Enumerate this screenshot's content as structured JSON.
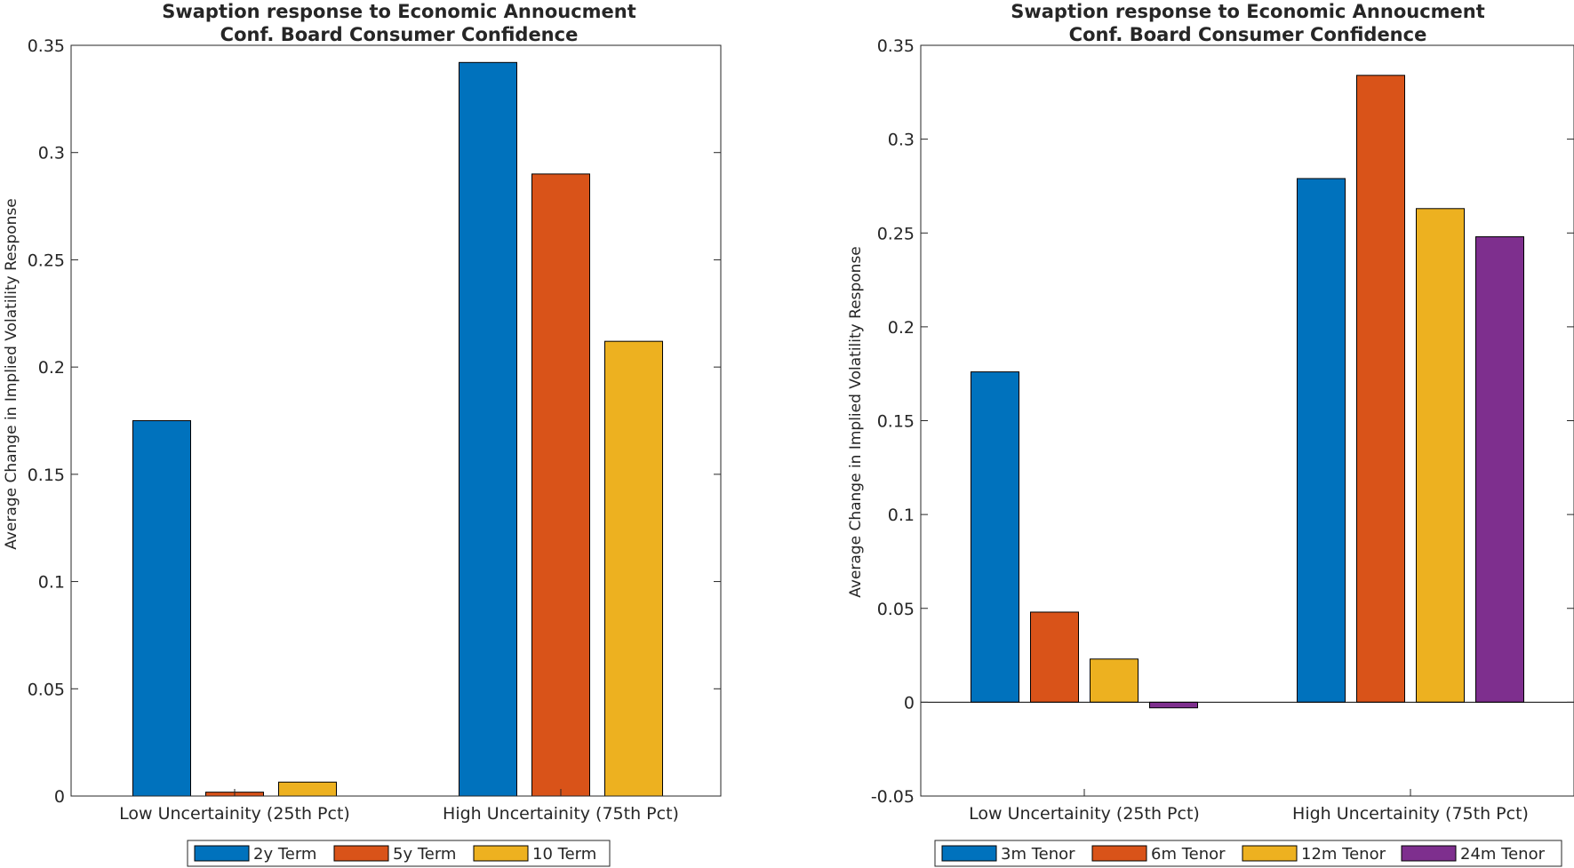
{
  "chart_data": [
    {
      "type": "bar",
      "title_line1": "Swaption response to Economic Annoucment",
      "title_line2": "Conf. Board Consumer Confidence",
      "xlabel": "",
      "ylabel": "Average Change in Implied Volatility Response",
      "categories": [
        "Low Uncertainity (25th Pct)",
        "High Uncertainity (75th Pct)"
      ],
      "ylim": [
        0,
        0.35
      ],
      "yticks": [
        0,
        0.05,
        0.1,
        0.15,
        0.2,
        0.25,
        0.3,
        0.35
      ],
      "ytick_labels": [
        "0",
        "0.05",
        "0.1",
        "0.15",
        "0.2",
        "0.25",
        "0.3",
        "0.35"
      ],
      "legend_position": "bottom-center",
      "grid": false,
      "series": [
        {
          "name": "2y Term",
          "color": "#0072BD",
          "values": [
            0.175,
            0.342
          ]
        },
        {
          "name": "5y Term",
          "color": "#D95319",
          "values": [
            0.0018,
            0.29
          ]
        },
        {
          "name": "10 Term",
          "color": "#EDB120",
          "values": [
            0.0065,
            0.212
          ]
        }
      ]
    },
    {
      "type": "bar",
      "title_line1": "Swaption response to Economic Annoucment",
      "title_line2": "Conf. Board Consumer Confidence",
      "xlabel": "",
      "ylabel": "Average Change in Implied Volatility Response",
      "categories": [
        "Low Uncertainity (25th Pct)",
        "High Uncertainity (75th Pct)"
      ],
      "ylim": [
        -0.05,
        0.35
      ],
      "yticks": [
        -0.05,
        0,
        0.05,
        0.1,
        0.15,
        0.2,
        0.25,
        0.3,
        0.35
      ],
      "ytick_labels": [
        "-0.05",
        "0",
        "0.05",
        "0.1",
        "0.15",
        "0.2",
        "0.25",
        "0.3",
        "0.35"
      ],
      "legend_position": "bottom-center",
      "grid": false,
      "series": [
        {
          "name": "3m Tenor",
          "color": "#0072BD",
          "values": [
            0.176,
            0.279
          ]
        },
        {
          "name": "6m Tenor",
          "color": "#D95319",
          "values": [
            0.048,
            0.334
          ]
        },
        {
          "name": "12m Tenor",
          "color": "#EDB120",
          "values": [
            0.023,
            0.263
          ]
        },
        {
          "name": "24m Tenor",
          "color": "#7E2F8E",
          "values": [
            -0.003,
            0.248
          ]
        }
      ]
    }
  ]
}
